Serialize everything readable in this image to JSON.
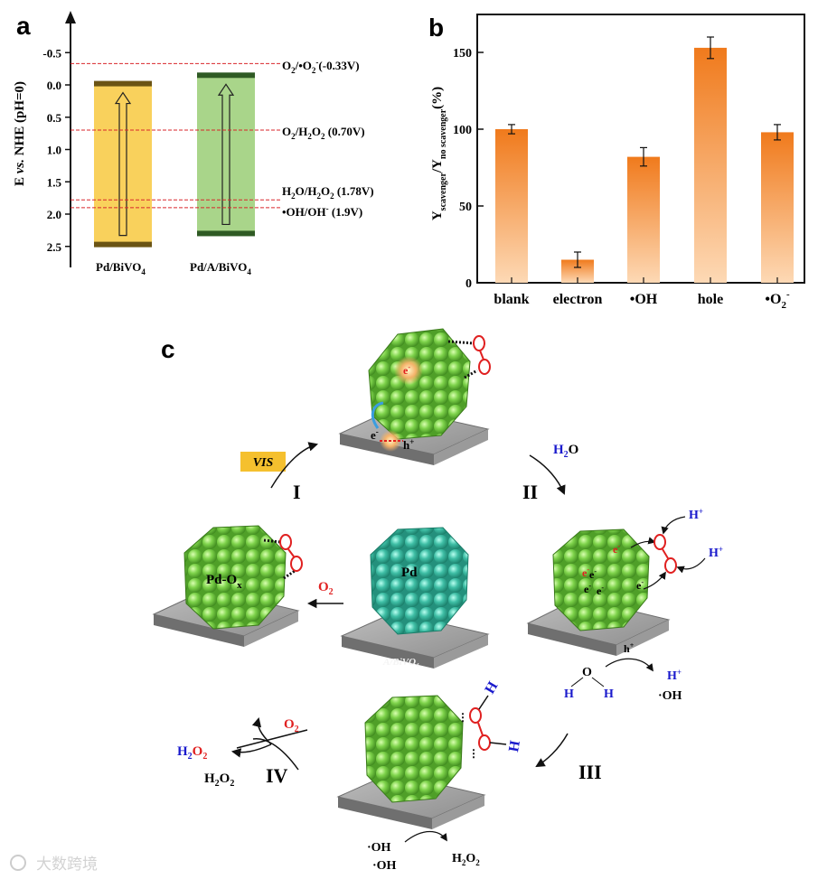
{
  "panel_a": {
    "letter": "a",
    "y_axis_label_main": "E ",
    "y_axis_label_italic": "vs.",
    "y_axis_label_rest": " NHE (pH=0)",
    "y_ticks": [
      "-0.5",
      "0.0",
      "0.5",
      "1.0",
      "1.5",
      "2.0",
      "2.5"
    ],
    "categories": [
      "Pd/BiVO",
      "Pd/A/BiVO"
    ],
    "category_subscript": "4",
    "bands": [
      {
        "name": "Pd/BiVO4",
        "cb": -0.02,
        "vb": 2.47,
        "fill": "#f9d15c",
        "edge": "#6b5414"
      },
      {
        "name": "Pd/A/BiVO4",
        "cb": -0.15,
        "vb": 2.3,
        "fill": "#a9d58a",
        "edge": "#2f5a24"
      }
    ],
    "potentials": [
      {
        "value": -0.33,
        "label": "O2/•O2- (-0.33V)"
      },
      {
        "value": 0.7,
        "label": "O2/H2O2 (0.70V)"
      },
      {
        "value": 1.78,
        "label": "H2O/H2O2 (1.78V)"
      },
      {
        "value": 1.9,
        "label": "•OH/OH- (1.9V)"
      }
    ],
    "label_parts": {
      "p1_a": "O",
      "p1_b": "2",
      "p1_c": "/•O",
      "p1_d": "2",
      "p1_e": "-",
      "p1_f": "(-0.33V)",
      "p2_a": "O",
      "p2_b": "2",
      "p2_c": "/H",
      "p2_d": "2",
      "p2_e": "O",
      "p2_f": "2",
      "p2_g": " (0.70V)",
      "p3_a": "H",
      "p3_b": "2",
      "p3_c": "O/H",
      "p3_d": "2",
      "p3_e": "O",
      "p3_f": "2",
      "p3_g": " (1.78V)",
      "p4_a": "•OH/OH",
      "p4_b": "-",
      "p4_c": " (1.9V)"
    },
    "line_color": "#d9262b"
  },
  "panel_b": {
    "letter": "b",
    "y_label_parts": {
      "y1": "Y",
      "s1": "scavenger",
      "slash": "/Y",
      "s2": "no scavenger",
      "unit": "(%)"
    },
    "y_ticks": [
      "0",
      "50",
      "100",
      "150"
    ],
    "x_labels": [
      "blank",
      "electron",
      "•OH",
      "hole",
      "•O"
    ],
    "o2_sub": "2",
    "o2_sup": "-"
  },
  "chart_data": {
    "type": "bar",
    "categories": [
      "blank",
      "electron",
      "•OH",
      "hole",
      "•O2-"
    ],
    "values": [
      100,
      15,
      82,
      153,
      98
    ],
    "errors": [
      3,
      5,
      6,
      7,
      5
    ],
    "ylabel": "Yscavenger/Yno scavenger(%)",
    "ylim": [
      0,
      170
    ],
    "grid": false,
    "bar_top_color": "#f07a1c",
    "bar_bottom_color": "#fdd9b5"
  },
  "panel_c": {
    "letter": "c",
    "vis_label": "VIS",
    "step_labels": {
      "I": "I",
      "II": "II",
      "III": "III",
      "IV": "IV"
    },
    "center_particle_label": "Pd",
    "center_support_label": "A/BiVO₄",
    "left_particle_label_a": "Pd-O",
    "left_particle_label_b": "x",
    "o2_arrow_a": "O",
    "o2_arrow_b": "2",
    "h2o_a": "H",
    "h2o_b": "2",
    "h2o_c": "O",
    "h_plus": "H+",
    "h_plus_a": "H",
    "h_plus_b": "+",
    "e_minus_a": "e",
    "e_minus_b": "-",
    "h_hole_a": "h",
    "h_hole_b": "+",
    "oh_radical": "·OH",
    "h2o2_a": "H",
    "h2o2_b": "2",
    "h2o2_c": "O",
    "h2o2_d": "2",
    "h_atom": "H",
    "o_atom": "O",
    "colors": {
      "green": "#7ed34b",
      "teal": "#3fbfa6",
      "blue": "#1a1acc",
      "red": "#e02020",
      "vis_bg": "#f5c02e"
    }
  },
  "watermark": "大数跨境"
}
